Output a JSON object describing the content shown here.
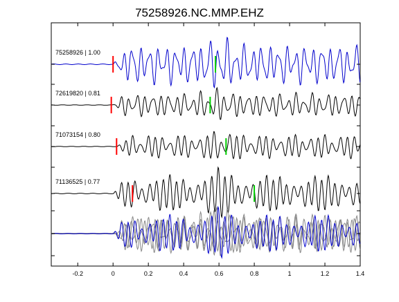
{
  "chart_data": {
    "type": "line",
    "title": "75258926.NC.MMP.EHZ",
    "xlabel": "",
    "ylabel": "",
    "xlim": [
      -0.35,
      1.4
    ],
    "x_ticks": [
      "-0.2",
      "0",
      "0.2",
      "0.4",
      "0.6",
      "0.8",
      "1",
      "1.2",
      "1.4"
    ],
    "x_tick_values": [
      -0.2,
      0,
      0.2,
      0.4,
      0.6,
      0.8,
      1.0,
      1.2,
      1.4
    ],
    "grid": false,
    "traces": [
      {
        "label": "75258926 | 1.00",
        "color": "#0000cc",
        "onset": 0.0,
        "p_pick": 0.0,
        "s_pick": 0.58
      },
      {
        "label": "72619820 | 0.81",
        "color": "#000000",
        "onset": -0.01,
        "p_pick": -0.01,
        "s_pick": 0.55
      },
      {
        "label": "71073154 | 0.80",
        "color": "#000000",
        "onset": 0.02,
        "p_pick": 0.02,
        "s_pick": 0.64
      },
      {
        "label": "71136525 | 0.77",
        "color": "#000000",
        "onset": 0.0,
        "p_pick": 0.11,
        "s_pick": 0.8
      }
    ],
    "stack": {
      "colors": [
        "#888888",
        "#888888",
        "#888888",
        "#0000cc"
      ]
    },
    "pick_colors": {
      "p": "#ff0000",
      "s": "#00cc00"
    }
  }
}
